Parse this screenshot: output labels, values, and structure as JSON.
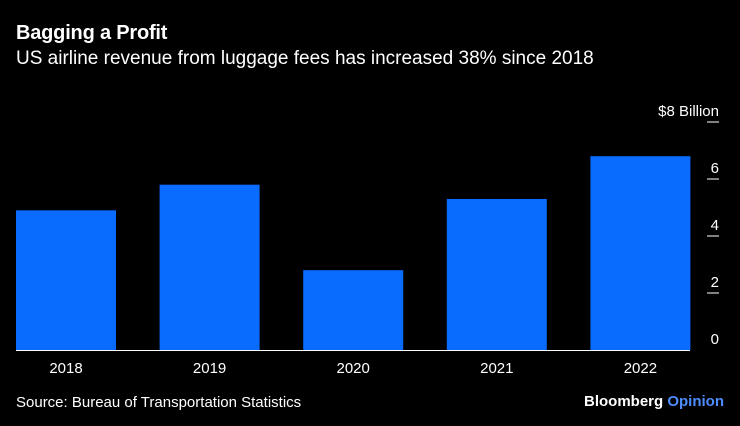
{
  "colors": {
    "background": "#000000",
    "bar": "#0a6cff",
    "text": "#ffffff",
    "brand_accent": "#4d8dff",
    "axis": "#ffffff"
  },
  "chart_data": {
    "type": "bar",
    "title": "Bagging a Profit",
    "subtitle": "US airline revenue from luggage fees has increased 38% since 2018",
    "categories": [
      "2018",
      "2019",
      "2020",
      "2021",
      "2022"
    ],
    "values": [
      4.9,
      5.8,
      2.8,
      5.3,
      6.8
    ],
    "ylim": [
      0,
      8
    ],
    "yticks": [
      0,
      2,
      4,
      6,
      8
    ],
    "ytick_labels": [
      "0",
      "2",
      "4",
      "6",
      "$8 Billion"
    ],
    "ylabel": "",
    "xlabel": "",
    "grid": false
  },
  "footer": {
    "source": "Source: Bureau of Transportation Statistics",
    "brand_main": "Bloomberg",
    "brand_accent": "Opinion"
  }
}
